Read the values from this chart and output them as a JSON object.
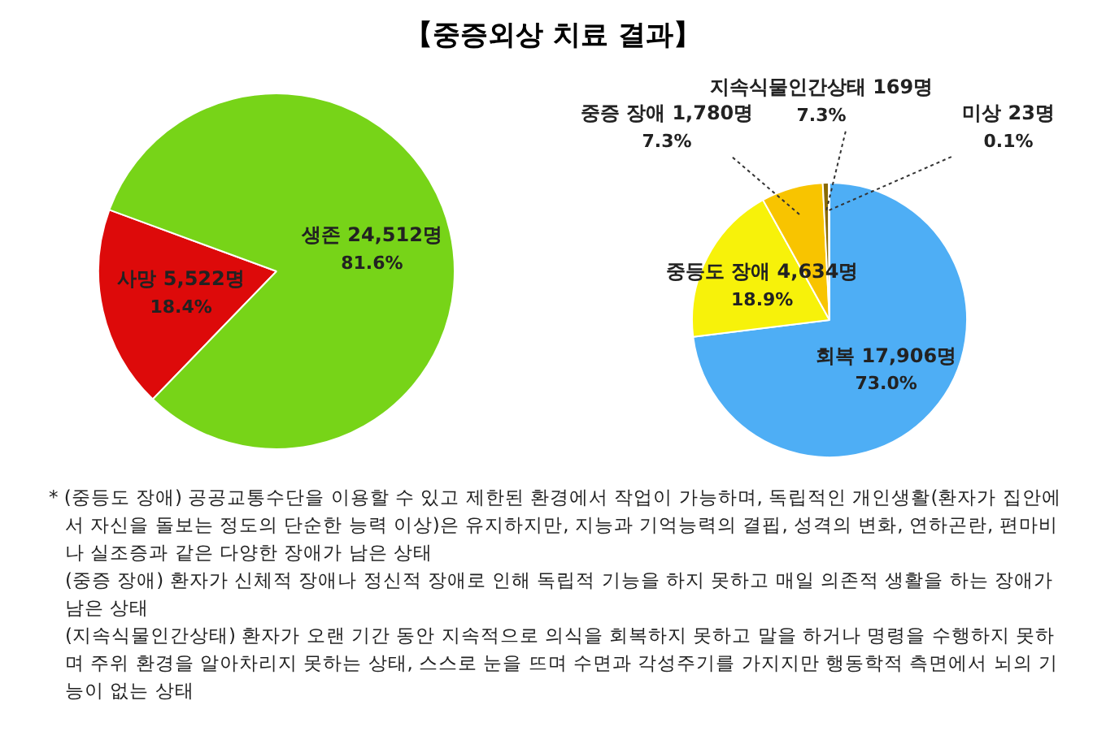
{
  "chart_data": [
    {
      "type": "pie",
      "title": "【중증외상 치료 결과】",
      "categories": [
        "사망",
        "생존"
      ],
      "values": [
        5522,
        24512
      ],
      "colors": [
        "#dd0a0a",
        "#77d418"
      ],
      "value_labels": [
        "5,522명\n18.4%",
        "24,512명\n81.6%"
      ],
      "legend": false
    },
    {
      "type": "pie",
      "categories": [
        "회복",
        "중등도 장애",
        "중증 장애",
        "지속식물인간상태",
        "미상"
      ],
      "values": [
        17906,
        4634,
        1780,
        169,
        23
      ],
      "colors": [
        "#4eaef5",
        "#f7f20a",
        "#f8c400",
        "#8a6a00",
        "#444444"
      ],
      "value_labels": [
        "17,906명\n73.0%",
        "4,634명\n18.9%",
        "1,780명\n7.3%",
        "169명\n7.3%",
        "23명\n0.1%"
      ],
      "legend": false,
      "annotations": [
        "* (중등도 장애) 공공교통수단을 이용할 수 있고 제한된 환경에서 작업이 가능하며, 독립적인 개인생활(환자가 집안에서 자신을 돌보는 정도의 단순한 능력 이상)은 유지하지만, 지능과 기억능력의 결핍, 성격의 변화, 연하곤란, 편마비나 실조증과 같은 다양한 장애가 남은 상태",
        "(중증 장애) 환자가 신체적 장애나 정신적 장애로 인해 독립적 기능을 하지 못하고 매일 의존적 생활을 하는 장애가 남은 상태",
        "(지속식물인간상태) 환자가 오랜 기간 동안 지속적으로 의식을 회복하지 못하고 말을 하거나 명령을 수행하지 못하며 주위 환경을 알아차리지 못하는 상태, 스스로 눈을 뜨며 수면과 각성주기를 가지지만 행동학적 측면에서 뇌의 기능이 없는 상태"
      ]
    }
  ]
}
